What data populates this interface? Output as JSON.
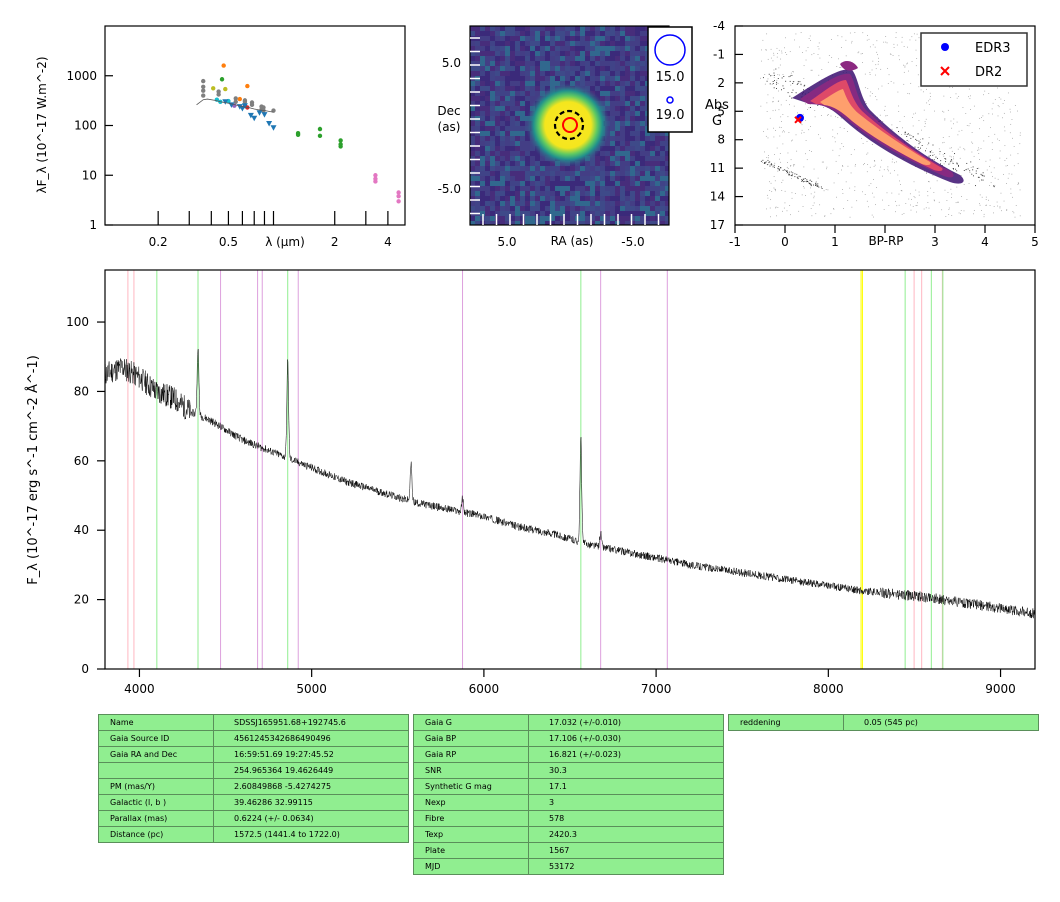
{
  "chart_data": [
    {
      "id": "sed",
      "type": "scatter",
      "title": "",
      "xlabel": "λ (μm)",
      "ylabel": "λF_λ (10^-17 W.m^-2)",
      "xscale": "log",
      "yscale": "log",
      "xlim": [
        0.1,
        5
      ],
      "ylim": [
        1,
        10000
      ],
      "xticks": [
        0.2,
        0.5,
        2,
        4
      ],
      "xtick_labels": [
        "0.2",
        "0.5",
        "2",
        "4"
      ],
      "yticks": [
        1,
        10,
        100,
        1000
      ],
      "ytick_labels": [
        "1",
        "10",
        "100",
        "1000"
      ],
      "series": [
        {
          "color": "#7f7f7f",
          "marker": "circle",
          "points": [
            [
              0.36,
              780
            ],
            [
              0.36,
              600
            ],
            [
              0.36,
              500
            ],
            [
              0.36,
              400
            ],
            [
              0.44,
              480
            ],
            [
              0.44,
              420
            ],
            [
              0.55,
              350
            ],
            [
              0.55,
              300
            ],
            [
              0.62,
              320
            ],
            [
              0.62,
              300
            ],
            [
              0.68,
              290
            ],
            [
              0.68,
              260
            ],
            [
              0.77,
              240
            ],
            [
              0.77,
              210
            ],
            [
              0.79,
              230
            ],
            [
              0.79,
              200
            ],
            [
              0.9,
              200
            ]
          ]
        },
        {
          "color": "#ff7f0e",
          "marker": "circle",
          "points": [
            [
              0.47,
              1600
            ],
            [
              0.64,
              620
            ],
            [
              0.58,
              340
            ]
          ]
        },
        {
          "color": "#2ca02c",
          "marker": "circle",
          "points": [
            [
              0.46,
              850
            ],
            [
              1.24,
              70
            ],
            [
              1.24,
              65
            ],
            [
              1.65,
              85
            ],
            [
              1.65,
              62
            ],
            [
              2.16,
              50
            ],
            [
              2.16,
              42
            ],
            [
              2.16,
              38
            ]
          ]
        },
        {
          "color": "#bcbd22",
          "marker": "circle",
          "points": [
            [
              0.41,
              560
            ],
            [
              0.48,
              540
            ]
          ]
        },
        {
          "color": "#17becf",
          "marker": "circle",
          "points": [
            [
              0.43,
              330
            ],
            [
              0.45,
              300
            ],
            [
              0.5,
              310
            ]
          ]
        },
        {
          "color": "#9467bd",
          "marker": "circle",
          "points": [
            [
              0.54,
              250
            ]
          ]
        },
        {
          "color": "#d62728",
          "marker": "circle",
          "points": [
            [
              0.62,
              250
            ],
            [
              0.64,
              230
            ]
          ]
        },
        {
          "color": "#1f77b4",
          "marker": "triangle",
          "points": [
            [
              0.48,
              300
            ],
            [
              0.52,
              260
            ],
            [
              0.58,
              240
            ],
            [
              0.62,
              250
            ],
            [
              0.67,
              160
            ],
            [
              0.7,
              140
            ],
            [
              0.75,
              180
            ],
            [
              0.8,
              165
            ],
            [
              0.85,
              110
            ],
            [
              0.9,
              90
            ],
            [
              0.6,
              220
            ]
          ]
        },
        {
          "color": "#e377c2",
          "marker": "circle",
          "points": [
            [
              3.4,
              10
            ],
            [
              3.4,
              8.5
            ],
            [
              3.4,
              7.5
            ],
            [
              4.6,
              4.5
            ],
            [
              4.6,
              3.8
            ],
            [
              4.6,
              3
            ]
          ]
        },
        {
          "color": "#555555",
          "marker": "line",
          "points": [
            [
              0.33,
              260
            ],
            [
              0.36,
              330
            ],
            [
              0.38,
              340
            ],
            [
              0.42,
              320
            ],
            [
              0.45,
              300
            ],
            [
              0.5,
              280
            ],
            [
              0.55,
              260
            ],
            [
              0.6,
              240
            ],
            [
              0.65,
              230
            ],
            [
              0.7,
              215
            ],
            [
              0.75,
              205
            ],
            [
              0.8,
              200
            ],
            [
              0.9,
              185
            ]
          ]
        }
      ]
    },
    {
      "id": "image",
      "type": "heatmap",
      "xlabel": "RA (as)",
      "ylabel": "Dec\n(as)",
      "xtick_labels": [
        "5.0",
        "-5.0"
      ],
      "ytick_labels": [
        "5.0",
        "-5.0"
      ],
      "legend": {
        "items": [
          {
            "label": "15.0",
            "color": "#0000ff"
          },
          {
            "label": "19.0",
            "color": "#0000ff"
          }
        ]
      }
    },
    {
      "id": "hr",
      "type": "scatter",
      "xlabel": "BP-RP",
      "ylabel": "Abs\nG",
      "xlim": [
        -1,
        5
      ],
      "ylim": [
        17,
        -4
      ],
      "xticks": [
        -1,
        0,
        1,
        3,
        4,
        5
      ],
      "xtick_labels": [
        "-1",
        "0",
        "1",
        "3",
        "4",
        "5"
      ],
      "yticks": [
        -4,
        -1,
        2,
        5,
        8,
        11,
        14,
        17
      ],
      "ytick_labels": [
        "-4",
        "-1",
        "2",
        "5",
        "8",
        "11",
        "14",
        "17"
      ],
      "legend_position": "top-right",
      "series": [
        {
          "name": "EDR3",
          "color": "#0000ff",
          "marker": "circle",
          "points": [
            [
              0.3,
              5.7
            ]
          ]
        },
        {
          "name": "DR2",
          "color": "#ff0000",
          "marker": "x",
          "points": [
            [
              0.26,
              5.9
            ]
          ]
        }
      ]
    },
    {
      "id": "spectrum",
      "type": "line",
      "xlabel": "",
      "ylabel": "F_λ (10^-17 erg s^-1 cm^-2 Å^-1)",
      "xlim": [
        3800,
        9200
      ],
      "ylim": [
        0,
        115
      ],
      "xticks": [
        4000,
        5000,
        6000,
        7000,
        8000,
        9000
      ],
      "xtick_labels": [
        "4000",
        "5000",
        "6000",
        "7000",
        "8000",
        "9000"
      ],
      "yticks": [
        0,
        20,
        40,
        60,
        80,
        100
      ],
      "ytick_labels": [
        "0",
        "20",
        "40",
        "60",
        "80",
        "100"
      ],
      "continuum": [
        [
          3800,
          85
        ],
        [
          3900,
          87
        ],
        [
          4000,
          84
        ],
        [
          4100,
          80
        ],
        [
          4200,
          78
        ],
        [
          4300,
          74
        ],
        [
          4400,
          72
        ],
        [
          4500,
          69
        ],
        [
          4600,
          66
        ],
        [
          4800,
          62
        ],
        [
          5000,
          58
        ],
        [
          5200,
          54
        ],
        [
          5400,
          51
        ],
        [
          5600,
          48
        ],
        [
          5800,
          46
        ],
        [
          6000,
          44
        ],
        [
          6200,
          41
        ],
        [
          6400,
          39
        ],
        [
          6600,
          36
        ],
        [
          6800,
          34
        ],
        [
          7000,
          32
        ],
        [
          7200,
          30
        ],
        [
          7400,
          28.5
        ],
        [
          7600,
          27
        ],
        [
          7800,
          25.5
        ],
        [
          8000,
          24
        ],
        [
          8200,
          22.5
        ],
        [
          8400,
          21.5
        ],
        [
          8600,
          20.5
        ],
        [
          8800,
          19
        ],
        [
          9000,
          17.5
        ],
        [
          9200,
          16
        ]
      ],
      "emission_lines": [
        [
          4340,
          20
        ],
        [
          4861,
          28
        ],
        [
          5876,
          4
        ],
        [
          6563,
          30
        ],
        [
          6678,
          4
        ],
        [
          5577,
          11
        ]
      ],
      "reference_lines": [
        {
          "x": 3933,
          "color": "#ffb6c1"
        },
        {
          "x": 3968,
          "color": "#ffb6c1"
        },
        {
          "x": 4101,
          "color": "#90ee90"
        },
        {
          "x": 4340,
          "color": "#90ee90"
        },
        {
          "x": 4471,
          "color": "#dda0dd"
        },
        {
          "x": 4686,
          "color": "#dda0dd"
        },
        {
          "x": 4713,
          "color": "#dda0dd"
        },
        {
          "x": 4861,
          "color": "#90ee90"
        },
        {
          "x": 4922,
          "color": "#dda0dd"
        },
        {
          "x": 5876,
          "color": "#dda0dd"
        },
        {
          "x": 6563,
          "color": "#90ee90"
        },
        {
          "x": 6678,
          "color": "#dda0dd"
        },
        {
          "x": 7065,
          "color": "#dda0dd"
        },
        {
          "x": 8190,
          "color": "#ffff00"
        },
        {
          "x": 8198,
          "color": "#ffff00"
        },
        {
          "x": 8446,
          "color": "#90ee90"
        },
        {
          "x": 8498,
          "color": "#ffb6c1"
        },
        {
          "x": 8542,
          "color": "#ffb6c1"
        },
        {
          "x": 8598,
          "color": "#90ee90"
        },
        {
          "x": 8662,
          "color": "#ffb6c1"
        },
        {
          "x": 8665,
          "color": "#90ee90"
        }
      ]
    }
  ],
  "tables": {
    "left": [
      {
        "k": "Name",
        "v": "SDSSJ165951.68+192745.6"
      },
      {
        "k": "Gaia Source ID",
        "v": "4561245342686490496"
      },
      {
        "k": "Gaia RA and Dec",
        "v": "16:59:51.69    19:27:45.52"
      },
      {
        "k": "",
        "v": "254.965364    19.4626449"
      },
      {
        "k": "PM (mas/Y)",
        "v": "2.60849868    -5.4274275"
      },
      {
        "k": "Galactic (l, b )",
        "v": "39.46286    32.99115"
      },
      {
        "k": "Parallax (mas)",
        "v": "0.6224 (+/- 0.0634)"
      },
      {
        "k": "Distance (pc)",
        "v": "1572.5 (1441.4 to 1722.0)"
      }
    ],
    "middle": [
      {
        "k": "Gaia G",
        "v": "17.032 (+/-0.010)"
      },
      {
        "k": "Gaia BP",
        "v": "17.106 (+/-0.030)"
      },
      {
        "k": "Gaia RP",
        "v": "16.821 (+/-0.023)"
      },
      {
        "k": "SNR",
        "v": "30.3"
      },
      {
        "k": "Synthetic G mag",
        "v": "17.1"
      },
      {
        "k": "Nexp",
        "v": "3"
      },
      {
        "k": "Fibre",
        "v": "578"
      },
      {
        "k": "Texp",
        "v": "2420.3"
      },
      {
        "k": "Plate",
        "v": "1567"
      },
      {
        "k": "MJD",
        "v": "53172"
      }
    ],
    "right": [
      {
        "k": "reddening",
        "v": "0.05 (545 pc)"
      }
    ]
  }
}
